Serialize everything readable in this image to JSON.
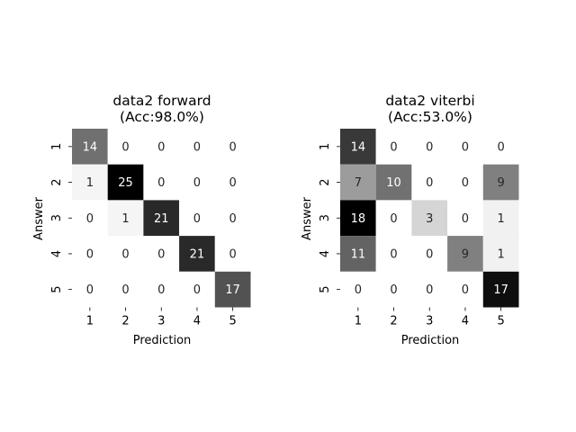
{
  "chart_data": [
    {
      "type": "heatmap",
      "title_line1": "data2 forward",
      "title_line2": "(Acc:98.0%)",
      "xlabel": "Prediction",
      "ylabel": "Answer",
      "x_ticks": [
        "1",
        "2",
        "3",
        "4",
        "5"
      ],
      "y_ticks": [
        "1",
        "2",
        "3",
        "4",
        "5"
      ],
      "colormap": "greys",
      "matrix": [
        [
          14,
          0,
          0,
          0,
          0
        ],
        [
          1,
          25,
          0,
          0,
          0
        ],
        [
          0,
          1,
          21,
          0,
          0
        ],
        [
          0,
          0,
          0,
          21,
          0
        ],
        [
          0,
          0,
          0,
          0,
          17
        ]
      ]
    },
    {
      "type": "heatmap",
      "title_line1": "data2 viterbi",
      "title_line2": "(Acc:53.0%)",
      "xlabel": "Prediction",
      "ylabel": "Answer",
      "x_ticks": [
        "1",
        "2",
        "3",
        "4",
        "5"
      ],
      "y_ticks": [
        "1",
        "2",
        "3",
        "4",
        "5"
      ],
      "colormap": "greys",
      "matrix": [
        [
          14,
          0,
          0,
          0,
          0
        ],
        [
          7,
          10,
          0,
          0,
          9
        ],
        [
          18,
          0,
          3,
          0,
          1
        ],
        [
          11,
          0,
          0,
          9,
          1
        ],
        [
          0,
          0,
          0,
          0,
          17
        ]
      ]
    }
  ]
}
